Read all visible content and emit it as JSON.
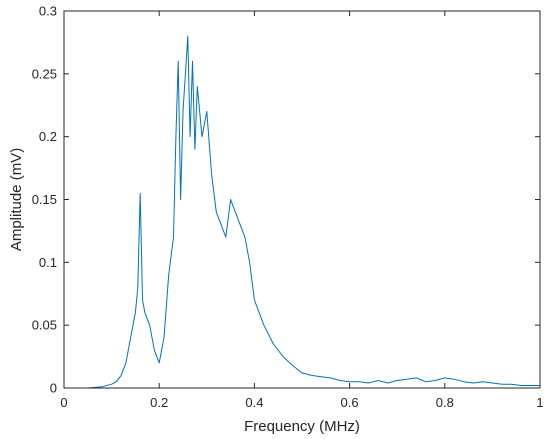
{
  "chart_data": {
    "type": "line",
    "title": "",
    "xlabel": "Frequency (MHz)",
    "ylabel": "Amplitude (mV)",
    "xlim": [
      0,
      1
    ],
    "ylim": [
      0,
      0.3
    ],
    "grid": false,
    "legend": "none",
    "color": "#0072BD",
    "xticks": [
      "0",
      "0.2",
      "0.4",
      "0.6",
      "0.8",
      "1"
    ],
    "yticks": [
      "0",
      "0.05",
      "0.1",
      "0.15",
      "0.2",
      "0.25",
      "0.3"
    ],
    "series": [
      {
        "x": [
          0.0,
          0.05,
          0.08,
          0.1,
          0.11,
          0.12,
          0.13,
          0.14,
          0.145,
          0.15,
          0.155,
          0.16,
          0.165,
          0.17,
          0.175,
          0.18,
          0.19,
          0.2,
          0.21,
          0.22,
          0.23,
          0.235,
          0.24,
          0.245,
          0.25,
          0.255,
          0.26,
          0.265,
          0.27,
          0.275,
          0.28,
          0.29,
          0.3,
          0.31,
          0.32,
          0.33,
          0.34,
          0.35,
          0.36,
          0.37,
          0.38,
          0.39,
          0.4,
          0.42,
          0.44,
          0.46,
          0.48,
          0.5,
          0.52,
          0.54,
          0.56,
          0.58,
          0.6,
          0.62,
          0.64,
          0.66,
          0.68,
          0.7,
          0.72,
          0.74,
          0.76,
          0.78,
          0.8,
          0.82,
          0.84,
          0.86,
          0.88,
          0.9,
          0.92,
          0.94,
          0.96,
          0.98,
          1.0
        ],
        "y": [
          0.0,
          0.0,
          0.001,
          0.003,
          0.005,
          0.01,
          0.02,
          0.04,
          0.05,
          0.06,
          0.08,
          0.155,
          0.07,
          0.06,
          0.055,
          0.05,
          0.03,
          0.02,
          0.04,
          0.09,
          0.12,
          0.2,
          0.26,
          0.15,
          0.22,
          0.25,
          0.28,
          0.2,
          0.26,
          0.19,
          0.24,
          0.2,
          0.22,
          0.17,
          0.14,
          0.13,
          0.12,
          0.15,
          0.14,
          0.13,
          0.12,
          0.1,
          0.07,
          0.05,
          0.035,
          0.025,
          0.018,
          0.012,
          0.01,
          0.009,
          0.008,
          0.006,
          0.005,
          0.005,
          0.004,
          0.006,
          0.004,
          0.006,
          0.007,
          0.008,
          0.005,
          0.006,
          0.008,
          0.007,
          0.005,
          0.004,
          0.005,
          0.004,
          0.003,
          0.003,
          0.002,
          0.002,
          0.002
        ]
      }
    ]
  }
}
